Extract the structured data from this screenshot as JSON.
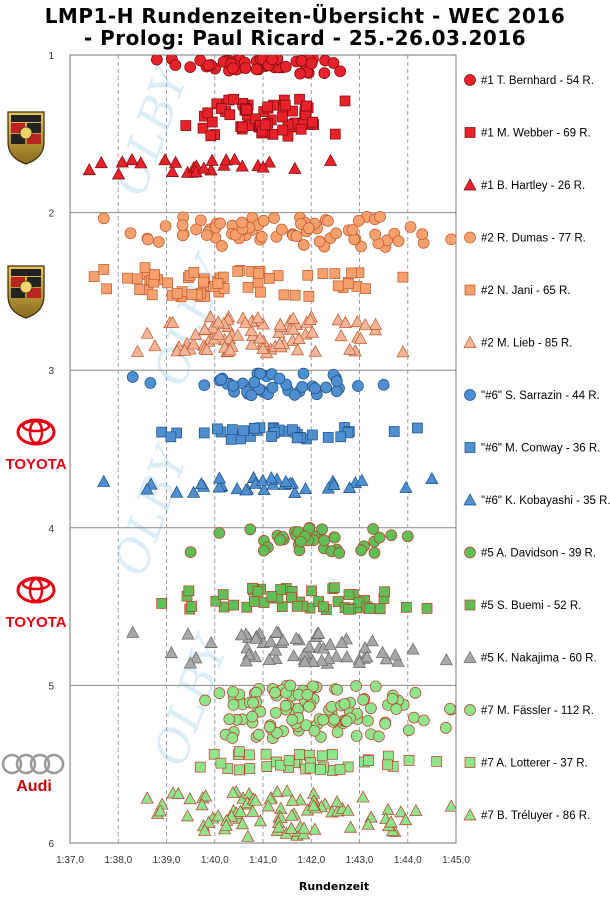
{
  "header": {
    "title": "LMP1-H Rundenzeiten-Übersicht - WEC 2016",
    "subtitle": "- Prolog: Paul Ricard - 25.-26.03.2016"
  },
  "brands": [
    {
      "name": "Porsche",
      "icon": "porsche-crest-icon"
    },
    {
      "name": "Porsche",
      "icon": "porsche-crest-icon"
    },
    {
      "name": "TOYOTA",
      "icon": "toyota-logo-icon"
    },
    {
      "name": "TOYOTA",
      "icon": "toyota-logo-icon"
    },
    {
      "name": "Audi",
      "icon": "audi-rings-icon"
    }
  ],
  "chart_data": {
    "type": "scatter",
    "xlabel": "Rundenzeit",
    "ylabel": "",
    "xlim": [
      97,
      105
    ],
    "ylim": [
      1,
      6
    ],
    "x_ticks": [
      "1:37,0",
      "1:38,0",
      "1:39,0",
      "1:40,0",
      "1:41,0",
      "1:42,0",
      "1:43,0",
      "1:44,0",
      "1:45,0"
    ],
    "y_ticks": [
      "1",
      "2",
      "3",
      "4",
      "5",
      "6"
    ],
    "grid": "vertical dashed, horizontal separators between cars",
    "legend_position": "right",
    "series": [
      {
        "name": "#1 T. Bernhard - 54 R.",
        "color": "#e8222a",
        "marker": "circle",
        "y_band": [
          1.02,
          1.12
        ],
        "x_min": 98.8,
        "x_max": 102.6,
        "x_mode": 101.0,
        "count": 54
      },
      {
        "name": "#1 M. Webber - 69 R.",
        "color": "#e8222a",
        "marker": "square",
        "y_band": [
          1.28,
          1.52
        ],
        "x_min": 99.4,
        "x_max": 102.7,
        "x_mode": 100.9,
        "count": 69
      },
      {
        "name": "#1 B. Hartley - 26 R.",
        "color": "#e8222a",
        "marker": "triangle",
        "y_band": [
          1.66,
          1.76
        ],
        "x_min": 97.4,
        "x_max": 102.4,
        "x_mode": 99.8,
        "count": 26
      },
      {
        "name": "#2 R. Dumas - 77 R.",
        "color": "#f6a06e",
        "marker": "circle",
        "y_band": [
          2.02,
          2.22
        ],
        "x_min": 97.7,
        "x_max": 104.9,
        "x_mode": 100.9,
        "count": 77
      },
      {
        "name": "#2 N. Jani - 65 R.",
        "color": "#f6a06e",
        "marker": "square",
        "y_band": [
          2.34,
          2.54
        ],
        "x_min": 97.5,
        "x_max": 103.9,
        "x_mode": 100.0,
        "count": 65
      },
      {
        "name": "#2 M. Lieb - 85 R.",
        "color": "#f3b59a",
        "marker": "triangle",
        "y_band": [
          2.66,
          2.9
        ],
        "x_min": 98.4,
        "x_max": 103.9,
        "x_mode": 100.2,
        "count": 85
      },
      {
        "name": "\"#6\" S. Sarrazin - 44 R.",
        "color": "#4f8fd0",
        "marker": "circle",
        "y_band": [
          3.02,
          3.16
        ],
        "x_min": 98.3,
        "x_max": 103.5,
        "x_mode": 101.6,
        "count": 44
      },
      {
        "name": "\"#6\" M. Conway - 36 R.",
        "color": "#4f8fd0",
        "marker": "square",
        "y_band": [
          3.36,
          3.44
        ],
        "x_min": 98.9,
        "x_max": 104.2,
        "x_mode": 101.2,
        "count": 36
      },
      {
        "name": "\"#6\" K. Kobayashi - 35 R.",
        "color": "#4f8fd0",
        "marker": "triangle",
        "y_band": [
          3.68,
          3.78
        ],
        "x_min": 97.7,
        "x_max": 104.5,
        "x_mode": 101.4,
        "count": 35
      },
      {
        "name": "#5 A. Davidson - 39 R.",
        "color": "#5fbe55",
        "marker": "circle",
        "y_band": [
          4.0,
          4.16
        ],
        "x_min": 99.5,
        "x_max": 104.0,
        "x_mode": 102.2,
        "count": 39
      },
      {
        "name": "#5 S. Buemi - 52 R.",
        "color": "#5fbe55",
        "marker": "square",
        "y_band": [
          4.38,
          4.52
        ],
        "x_min": 98.9,
        "x_max": 104.4,
        "x_mode": 101.8,
        "count": 52
      },
      {
        "name": "#5 K. Nakajima - 60 R.",
        "color": "#a8a8a8",
        "marker": "triangle",
        "y_band": [
          4.66,
          4.86
        ],
        "x_min": 98.3,
        "x_max": 104.8,
        "x_mode": 101.8,
        "count": 60
      },
      {
        "name": "#7 M. Fässler - 112 R.",
        "color": "#8ee58c",
        "marker": "circle",
        "y_band": [
          5.0,
          5.34
        ],
        "x_min": 99.8,
        "x_max": 104.9,
        "x_mode": 101.3,
        "count": 112
      },
      {
        "name": "#7 A. Lotterer - 37 R.",
        "color": "#8ee58c",
        "marker": "square",
        "y_band": [
          5.42,
          5.54
        ],
        "x_min": 99.7,
        "x_max": 104.6,
        "x_mode": 101.6,
        "count": 37
      },
      {
        "name": "#7 B. Tréluyer - 86 R.",
        "color": "#8ee58c",
        "marker": "triangle",
        "y_band": [
          5.66,
          5.96
        ],
        "x_min": 98.6,
        "x_max": 104.9,
        "x_mode": 100.6,
        "count": 86
      }
    ]
  }
}
